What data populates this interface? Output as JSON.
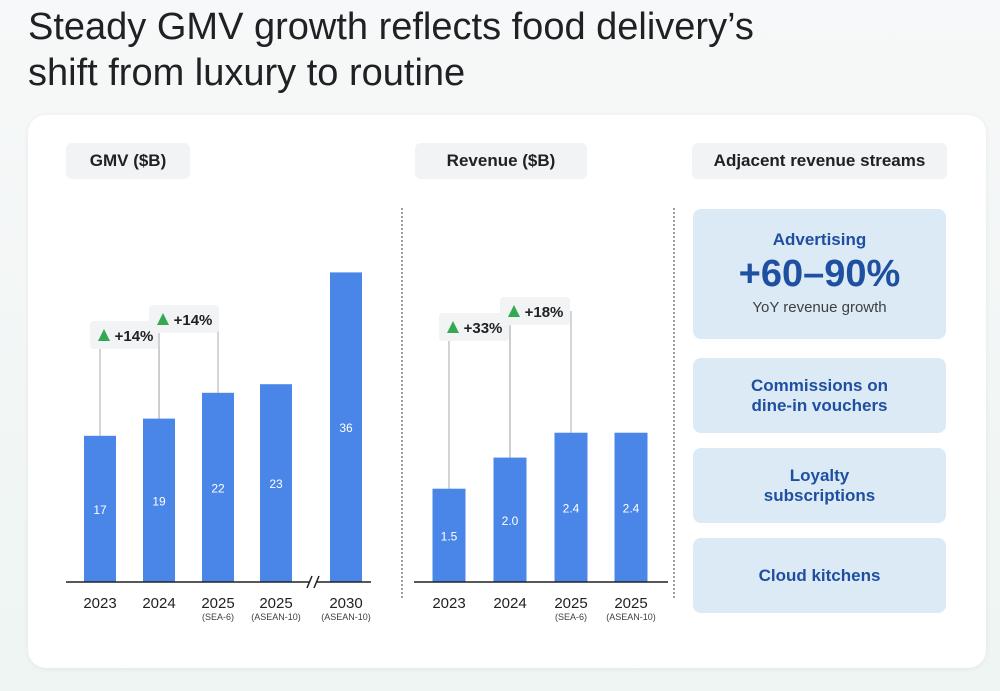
{
  "page": {
    "title_line1": "Steady GMV growth reflects food delivery’s",
    "title_line2": "shift from luxury to routine"
  },
  "colors": {
    "bar": "#4a86e8",
    "growth_arrow": "#34a853",
    "stream_bg": "#dceaf6",
    "stream_text": "#1f4fa0"
  },
  "chart_data": [
    {
      "type": "bar",
      "title": "GMV ($B)",
      "categories": [
        "2023",
        "2024",
        "2025",
        "2025",
        "2030"
      ],
      "category_notes": [
        "",
        "",
        "(SEA-6)",
        "(ASEAN-10)",
        "(ASEAN-10)"
      ],
      "values": [
        17,
        19,
        22,
        23,
        36
      ],
      "axis_break_before": "2030",
      "growth_labels": [
        {
          "text": "+14%",
          "from": "2023",
          "to": "2024"
        },
        {
          "text": "+14%",
          "from": "2024",
          "to": "2025"
        }
      ],
      "grid": false
    },
    {
      "type": "bar",
      "title": "Revenue ($B)",
      "categories": [
        "2023",
        "2024",
        "2025",
        "2025"
      ],
      "category_notes": [
        "",
        "",
        "(SEA-6)",
        "(ASEAN-10)"
      ],
      "values": [
        1.5,
        2.0,
        2.4,
        2.4
      ],
      "growth_labels": [
        {
          "text": "+33%",
          "from": "2023",
          "to": "2024"
        },
        {
          "text": "+18%",
          "from": "2024",
          "to": "2025"
        }
      ],
      "grid": false
    }
  ],
  "streams": {
    "title": "Adjacent revenue streams",
    "advertising": {
      "label": "Advertising",
      "value": "+60–90%",
      "caption": "YoY revenue growth"
    },
    "items": [
      {
        "label_line1": "Commissions on",
        "label_line2": "dine-in vouchers"
      },
      {
        "label_line1": "Loyalty",
        "label_line2": "subscriptions"
      },
      {
        "label_line1": "Cloud kitchens",
        "label_line2": ""
      }
    ]
  }
}
